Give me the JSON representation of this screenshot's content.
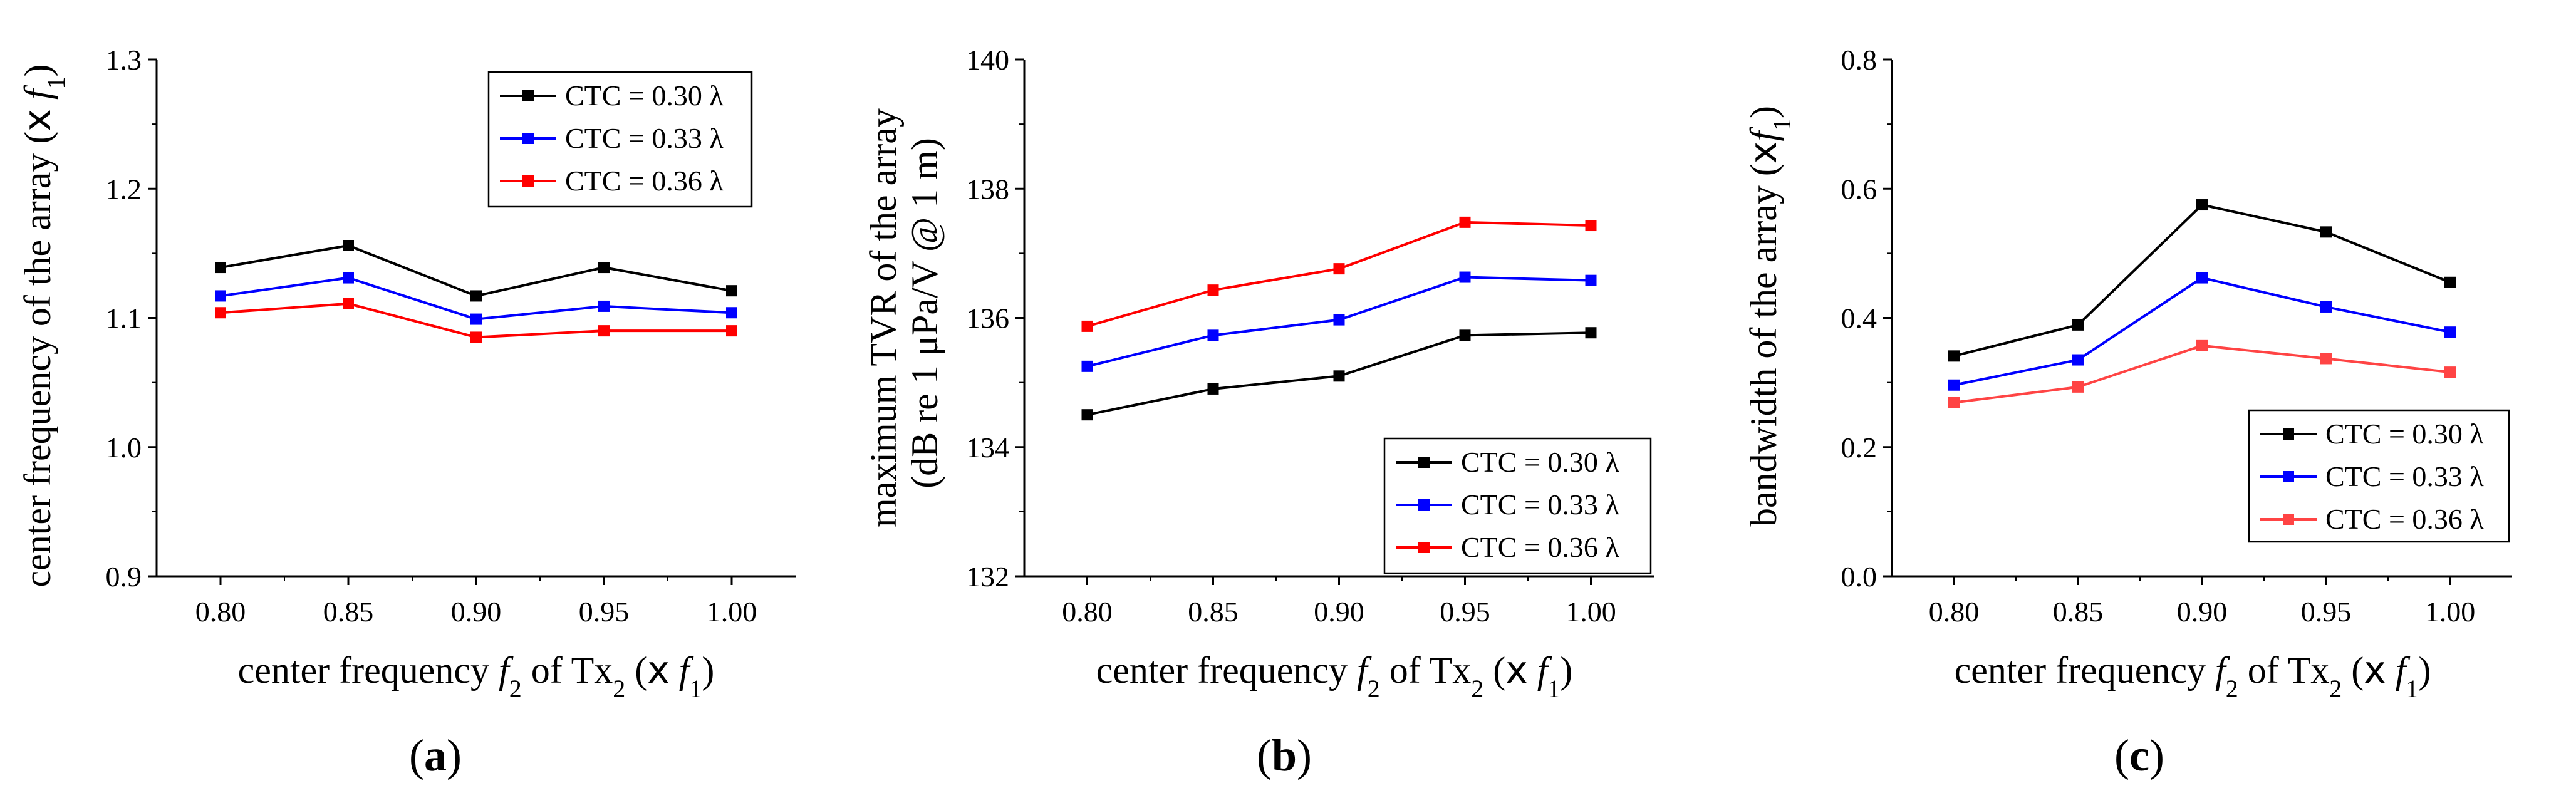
{
  "chart_data": [
    {
      "type": "line",
      "panel_label": "a",
      "x": [
        0.8,
        0.85,
        0.9,
        0.95,
        1.0
      ],
      "x_tick_labels": [
        "0.80",
        "0.85",
        "0.90",
        "0.95",
        "1.00"
      ],
      "xlim": [
        0.775,
        1.025
      ],
      "ylim": [
        0.9,
        1.3
      ],
      "y_ticks": [
        0.9,
        1.0,
        1.1,
        1.2,
        1.3
      ],
      "y_tick_labels": [
        "0.9",
        "1.0",
        "1.1",
        "1.2",
        "1.3"
      ],
      "xlabel_parts": [
        "center frequency ",
        "f",
        "2",
        " of Tx",
        "2",
        " (",
        "x",
        " ",
        "f",
        "1",
        ")"
      ],
      "ylabel_parts": [
        "center frequency of the array (",
        "x",
        " ",
        "f",
        "1",
        ")"
      ],
      "legend_position": "top-right",
      "grid": false,
      "series": [
        {
          "name": "CTC = 0.30 λ",
          "color": "#000000",
          "values": [
            1.139,
            1.156,
            1.117,
            1.139,
            1.121
          ]
        },
        {
          "name": "CTC = 0.33 λ",
          "color": "#0000ff",
          "values": [
            1.117,
            1.131,
            1.099,
            1.109,
            1.104
          ]
        },
        {
          "name": "CTC = 0.36 λ",
          "color": "#ff0000",
          "values": [
            1.104,
            1.111,
            1.085,
            1.09,
            1.09
          ]
        }
      ]
    },
    {
      "type": "line",
      "panel_label": "b",
      "x": [
        0.8,
        0.85,
        0.9,
        0.95,
        1.0
      ],
      "x_tick_labels": [
        "0.80",
        "0.85",
        "0.90",
        "0.95",
        "1.00"
      ],
      "xlim": [
        0.775,
        1.025
      ],
      "ylim": [
        132,
        140
      ],
      "y_ticks": [
        132,
        134,
        136,
        138,
        140
      ],
      "y_tick_labels": [
        "132",
        "134",
        "136",
        "138",
        "140"
      ],
      "xlabel_parts": [
        "center frequency ",
        "f",
        "2",
        " of Tx",
        "2",
        " (",
        "x",
        " ",
        "f",
        "1",
        ")"
      ],
      "ylabel_line1": "maximum TVR of the array",
      "ylabel_line2": "(dB re 1 μPa/V @ 1 m)",
      "legend_position": "bottom-right",
      "grid": false,
      "series": [
        {
          "name": "CTC = 0.30 λ",
          "color": "#000000",
          "values": [
            134.5,
            134.9,
            135.1,
            135.73,
            135.77
          ]
        },
        {
          "name": "CTC = 0.33 λ",
          "color": "#0000ff",
          "values": [
            135.25,
            135.73,
            135.97,
            136.63,
            136.58
          ]
        },
        {
          "name": "CTC = 0.36 λ",
          "color": "#ff0000",
          "values": [
            135.87,
            136.43,
            136.76,
            137.48,
            137.43
          ]
        }
      ]
    },
    {
      "type": "line",
      "panel_label": "c",
      "x": [
        0.8,
        0.85,
        0.9,
        0.95,
        1.0
      ],
      "x_tick_labels": [
        "0.80",
        "0.85",
        "0.90",
        "0.95",
        "1.00"
      ],
      "xlim": [
        0.775,
        1.025
      ],
      "ylim": [
        0.0,
        0.8
      ],
      "y_ticks": [
        0.0,
        0.2,
        0.4,
        0.6,
        0.8
      ],
      "y_tick_labels": [
        "0.0",
        "0.2",
        "0.4",
        "0.6",
        "0.8"
      ],
      "xlabel_parts": [
        "center frequency ",
        "f",
        "2",
        " of Tx",
        "2",
        " (",
        "x",
        " ",
        "f",
        "1",
        ")"
      ],
      "ylabel_parts": [
        "bandwidth of the array (",
        "x",
        "f",
        "1",
        ")"
      ],
      "legend_position": "bottom-right",
      "grid": false,
      "series": [
        {
          "name": "CTC = 0.30 λ",
          "color": "#000000",
          "values": [
            0.341,
            0.389,
            0.575,
            0.533,
            0.455
          ]
        },
        {
          "name": "CTC = 0.33 λ",
          "color": "#0000ff",
          "values": [
            0.296,
            0.335,
            0.462,
            0.417,
            0.378
          ]
        },
        {
          "name": "CTC = 0.36 λ",
          "color": "#ff4444",
          "values": [
            0.269,
            0.293,
            0.357,
            0.337,
            0.316
          ]
        }
      ]
    }
  ]
}
